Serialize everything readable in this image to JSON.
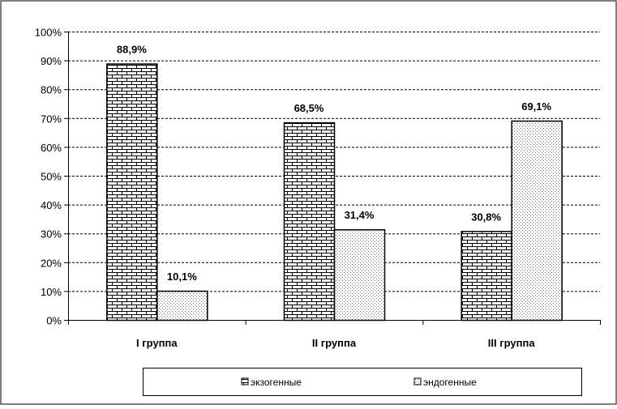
{
  "chart_data": {
    "type": "bar",
    "categories": [
      "I группа",
      "II группа",
      "III группа"
    ],
    "series": [
      {
        "name": "экзогенные",
        "values": [
          88.9,
          68.5,
          30.8
        ],
        "labels": [
          "88,9%",
          "68,5%",
          "30,8%"
        ],
        "pattern": "brick"
      },
      {
        "name": "эндогенные",
        "values": [
          10.1,
          31.4,
          69.1
        ],
        "labels": [
          "10,1%",
          "31,4%",
          "69,1%"
        ],
        "pattern": "dots"
      }
    ],
    "ylim": [
      0,
      100
    ],
    "yticks": [
      0,
      10,
      20,
      30,
      40,
      50,
      60,
      70,
      80,
      90,
      100
    ],
    "ytick_labels": [
      "0%",
      "10%",
      "20%",
      "30%",
      "40%",
      "50%",
      "60%",
      "70%",
      "80%",
      "90%",
      "100%"
    ],
    "title": "",
    "xlabel": "",
    "ylabel": "",
    "grid": true,
    "legend_position": "bottom"
  }
}
